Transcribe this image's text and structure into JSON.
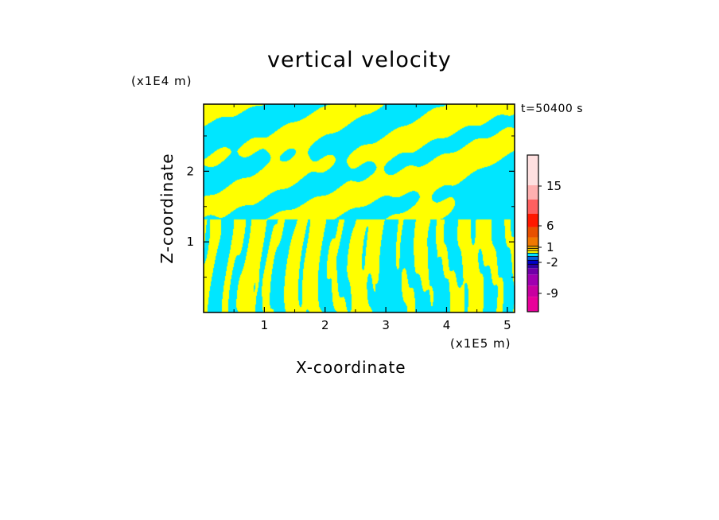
{
  "chart_data": {
    "type": "heatmap",
    "title": "vertical velocity",
    "xlabel": "X-coordinate",
    "ylabel": "Z-coordinate",
    "x_unit": "(x1E5 m)",
    "y_unit": "(x1E4 m)",
    "time_label": "t=50400 s",
    "x_ticks": [
      1,
      2,
      3,
      4,
      5
    ],
    "y_ticks": [
      1,
      2
    ],
    "xlim": [
      0,
      5.12
    ],
    "ylim": [
      0,
      2.95
    ],
    "colorbar": {
      "levels": [
        {
          "color": "#e8009a"
        },
        {
          "color": "#c800a0"
        },
        {
          "color": "#a000b0"
        },
        {
          "color": "#7000a8"
        },
        {
          "color": "#3000a0"
        },
        {
          "color": "#0000c8"
        },
        {
          "color": "#0060e0"
        },
        {
          "color": "#00e6ff"
        },
        {
          "color": "#ffff00"
        },
        {
          "color": "#f0c800"
        },
        {
          "color": "#e0a000"
        },
        {
          "color": "#f07800"
        },
        {
          "color": "#e85000"
        },
        {
          "color": "#ff1800"
        },
        {
          "color": "#ff6060"
        },
        {
          "color": "#ffb0b0"
        },
        {
          "color": "#ffe0e0"
        }
      ],
      "tick_labels": [
        {
          "label": "15"
        },
        {
          "label": "6"
        },
        {
          "label": "1"
        },
        {
          "label": "-2"
        },
        {
          "label": "-9"
        }
      ]
    },
    "field_colors": {
      "positive": "#ffff00",
      "negative": "#00e6ff"
    }
  }
}
